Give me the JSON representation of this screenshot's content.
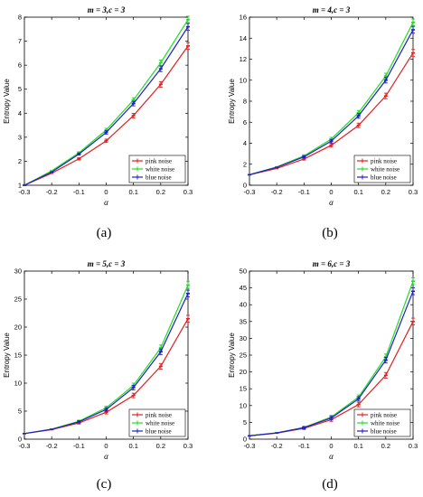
{
  "chart_data": [
    {
      "type": "line",
      "title": "m = 3,c = 3",
      "tag": "(a)",
      "xlabel": "α",
      "ylabel": "Entropy Value",
      "x": [
        -0.3,
        -0.2,
        -0.1,
        0,
        0.1,
        0.2,
        0.3
      ],
      "xticks": [
        "-0.3",
        "-0.2",
        "-0.1",
        "0",
        "0.1",
        "0.2",
        "0.3"
      ],
      "ylim": [
        1,
        8
      ],
      "yticks": [
        "1",
        "2",
        "3",
        "4",
        "5",
        "6",
        "7",
        "8"
      ],
      "series": [
        {
          "name": "pink noise",
          "color": "#e02020",
          "values": [
            1.0,
            1.5,
            2.1,
            2.85,
            3.9,
            5.2,
            6.8
          ]
        },
        {
          "name": "white noise",
          "color": "#22dd22",
          "values": [
            1.0,
            1.6,
            2.35,
            3.3,
            4.55,
            6.1,
            7.9
          ]
        },
        {
          "name": "blue noise",
          "color": "#1f1fcc",
          "values": [
            1.0,
            1.55,
            2.3,
            3.2,
            4.4,
            5.85,
            7.6
          ]
        }
      ]
    },
    {
      "type": "line",
      "title": "m = 4,c = 3",
      "tag": "(b)",
      "xlabel": "α",
      "ylabel": "Entropy Value",
      "x": [
        -0.3,
        -0.2,
        -0.1,
        0,
        0.1,
        0.2,
        0.3
      ],
      "xticks": [
        "-0.3",
        "-0.2",
        "-0.1",
        "0",
        "0.1",
        "0.2",
        "0.3"
      ],
      "ylim": [
        0,
        16
      ],
      "yticks": [
        "0",
        "2",
        "4",
        "6",
        "8",
        "10",
        "12",
        "14",
        "16"
      ],
      "series": [
        {
          "name": "pink noise",
          "color": "#e02020",
          "values": [
            1.0,
            1.6,
            2.5,
            3.8,
            5.7,
            8.5,
            12.6
          ]
        },
        {
          "name": "white noise",
          "color": "#22dd22",
          "values": [
            1.0,
            1.75,
            2.8,
            4.4,
            6.9,
            10.4,
            15.5
          ]
        },
        {
          "name": "blue noise",
          "color": "#1f1fcc",
          "values": [
            1.0,
            1.7,
            2.7,
            4.2,
            6.6,
            10.0,
            14.8
          ]
        }
      ]
    },
    {
      "type": "line",
      "title": "m = 5,c = 3",
      "tag": "(c)",
      "xlabel": "α",
      "ylabel": "Entropy Value",
      "x": [
        -0.3,
        -0.2,
        -0.1,
        0,
        0.1,
        0.2,
        0.3
      ],
      "xticks": [
        "-0.3",
        "-0.2",
        "-0.1",
        "0",
        "0.1",
        "0.2",
        "0.3"
      ],
      "ylim": [
        0,
        30
      ],
      "yticks": [
        "0",
        "5",
        "10",
        "15",
        "20",
        "25",
        "30"
      ],
      "series": [
        {
          "name": "pink noise",
          "color": "#e02020",
          "values": [
            1.0,
            1.7,
            2.9,
            4.8,
            7.8,
            13.0,
            21.5
          ]
        },
        {
          "name": "white noise",
          "color": "#22dd22",
          "values": [
            1.0,
            1.8,
            3.2,
            5.6,
            9.6,
            16.3,
            27.5
          ]
        },
        {
          "name": "blue noise",
          "color": "#1f1fcc",
          "values": [
            1.0,
            1.75,
            3.1,
            5.3,
            9.2,
            15.6,
            26.0
          ]
        }
      ]
    },
    {
      "type": "line",
      "title": "m = 6,c = 3",
      "tag": "(d)",
      "xlabel": "α",
      "ylabel": "Entropy Value",
      "x": [
        -0.3,
        -0.2,
        -0.1,
        0,
        0.1,
        0.2,
        0.3
      ],
      "xticks": [
        "-0.3",
        "-0.2",
        "-0.1",
        "0",
        "0.1",
        "0.2",
        "0.3"
      ],
      "ylim": [
        0,
        50
      ],
      "yticks": [
        "0",
        "5",
        "10",
        "15",
        "20",
        "25",
        "30",
        "35",
        "40",
        "45",
        "50"
      ],
      "series": [
        {
          "name": "pink noise",
          "color": "#e02020",
          "values": [
            1.0,
            1.8,
            3.2,
            5.8,
            10.3,
            19.0,
            35.0
          ]
        },
        {
          "name": "white noise",
          "color": "#22dd22",
          "values": [
            1.0,
            1.9,
            3.5,
            6.6,
            12.5,
            24.5,
            47.0
          ]
        },
        {
          "name": "blue noise",
          "color": "#1f1fcc",
          "values": [
            1.0,
            1.85,
            3.4,
            6.3,
            12.0,
            23.5,
            44.0
          ]
        }
      ]
    }
  ]
}
